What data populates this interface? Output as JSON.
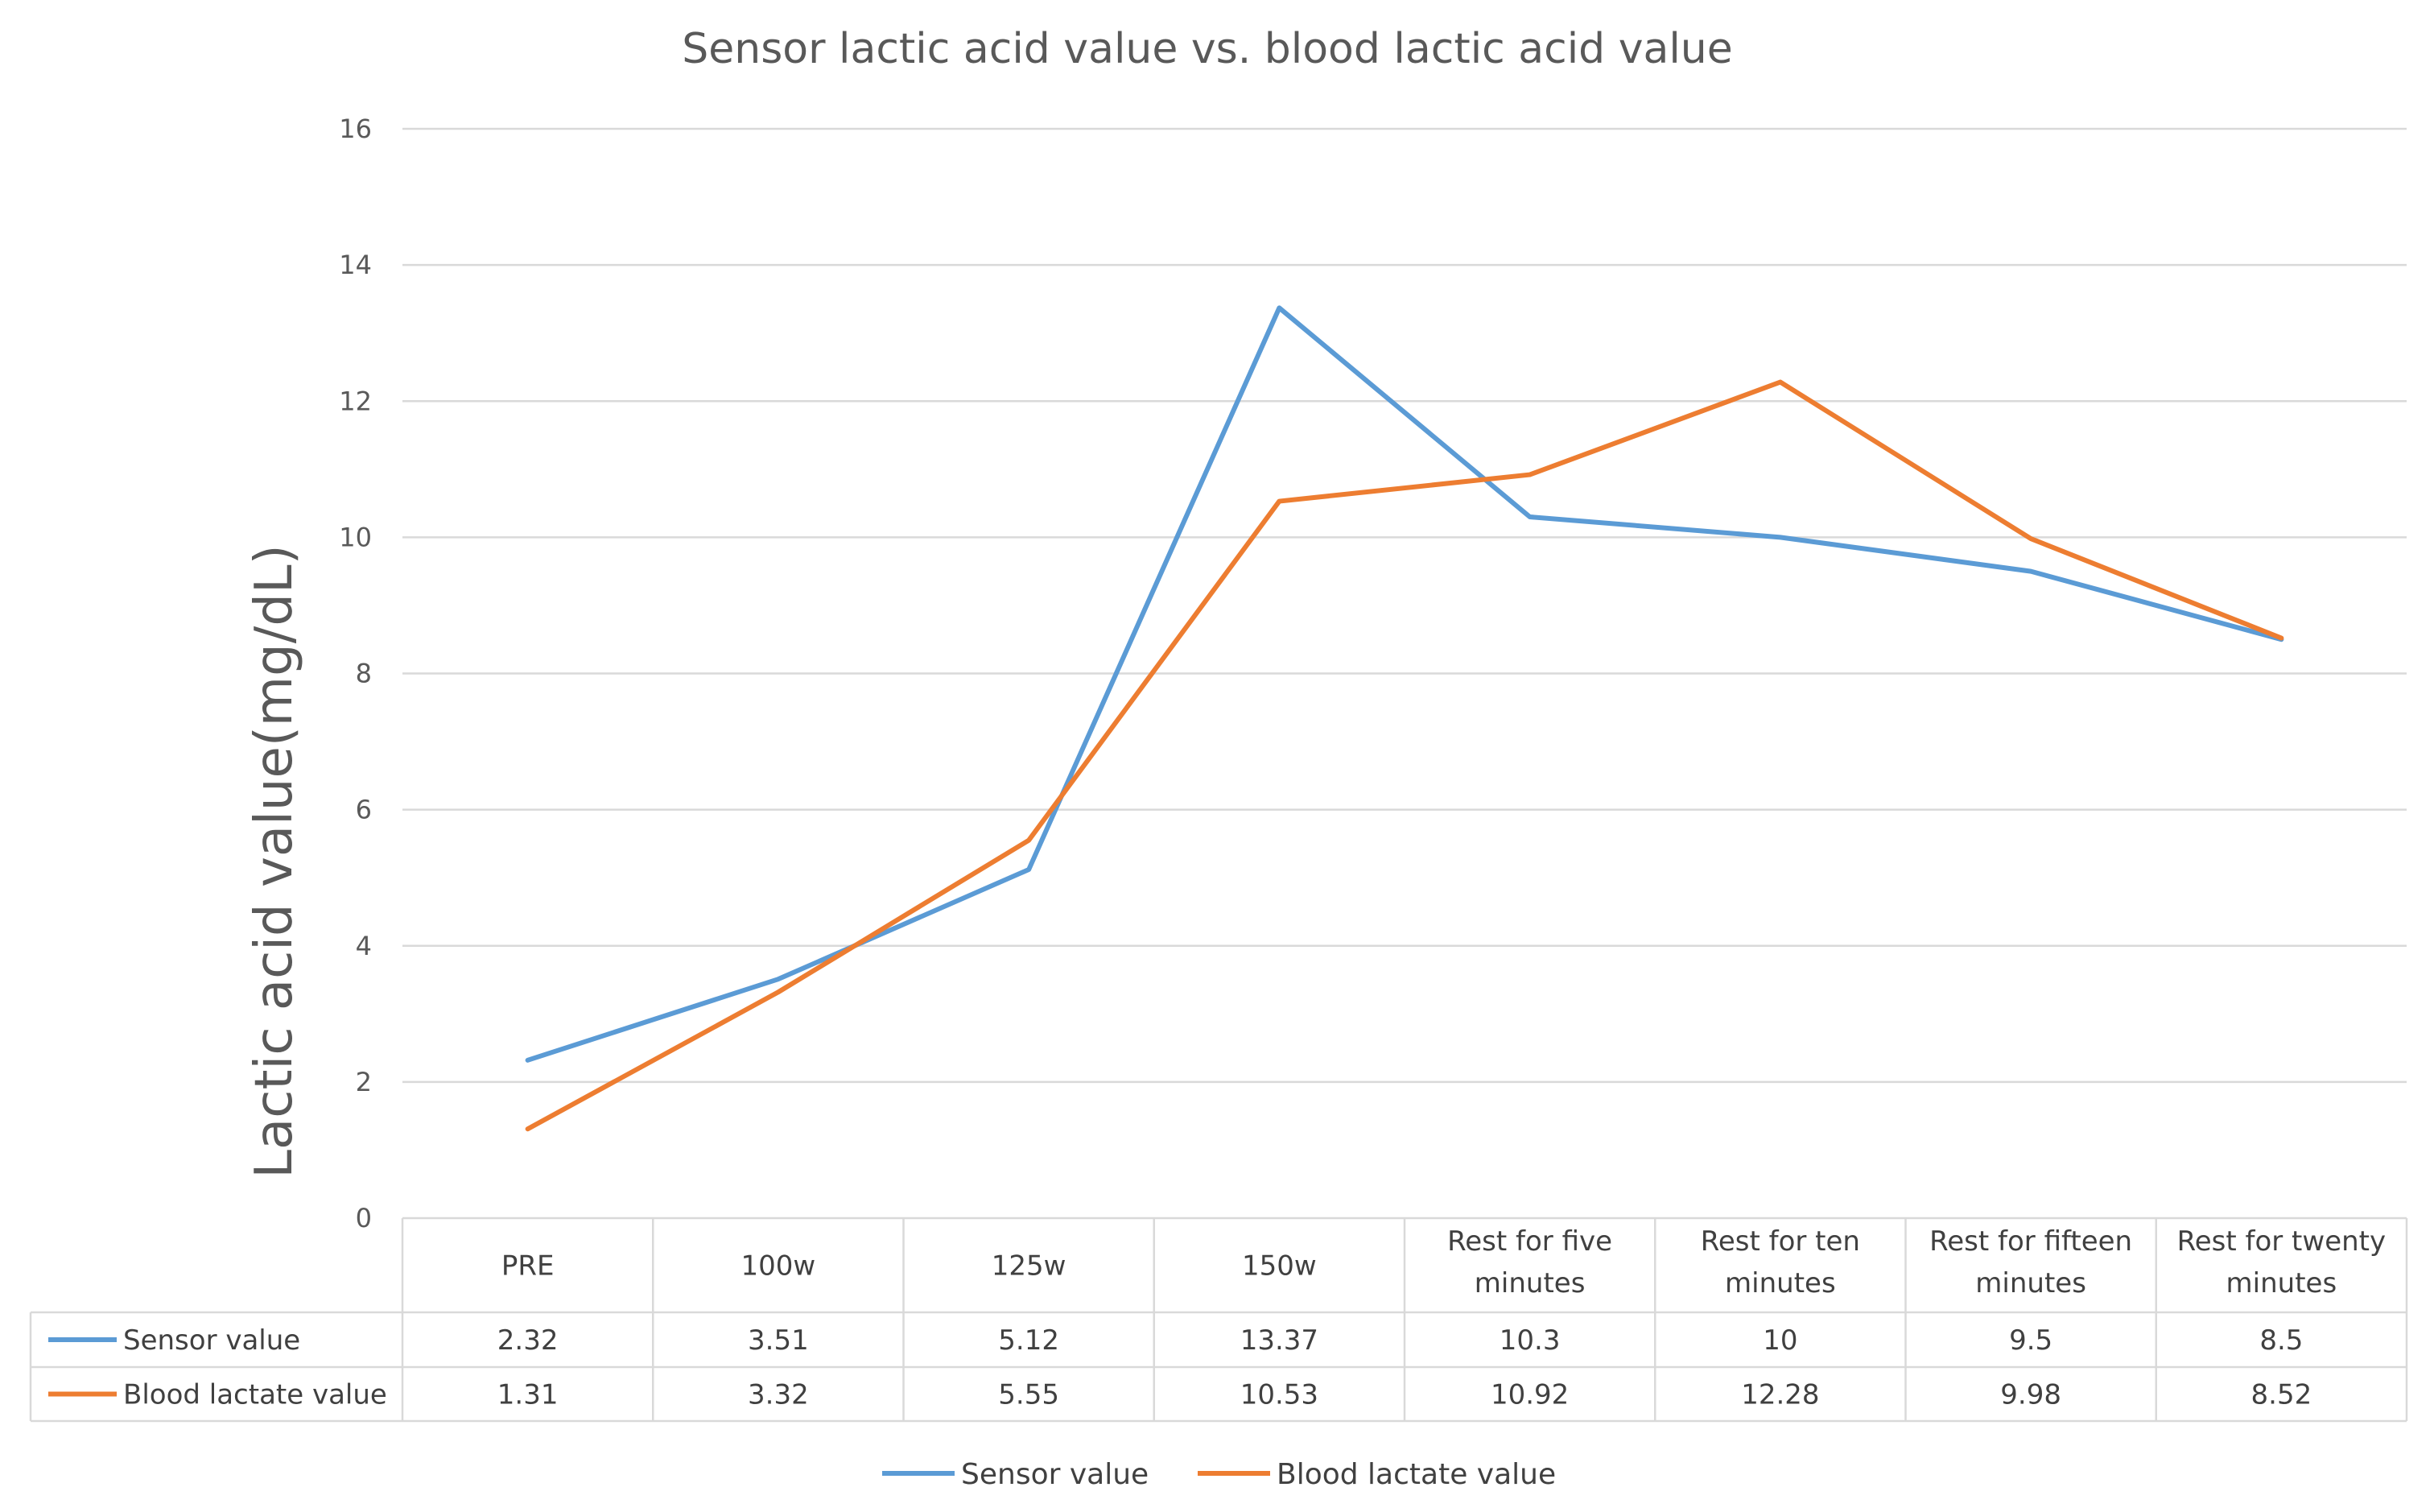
{
  "chart_data": {
    "type": "line",
    "title": "Sensor lactic acid value vs. blood lactic acid value",
    "xlabel": "",
    "ylabel": "Lactic acid value(mg/dL)",
    "ylim": [
      0,
      16
    ],
    "yticks": [
      0,
      2,
      4,
      6,
      8,
      10,
      12,
      14,
      16
    ],
    "grid": true,
    "legend_position": "bottom",
    "categories": [
      [
        "PRE"
      ],
      [
        "100w"
      ],
      [
        "125w"
      ],
      [
        "150w"
      ],
      [
        "Rest for five",
        "minutes"
      ],
      [
        "Rest for ten",
        "minutes"
      ],
      [
        "Rest for fifteen",
        "minutes"
      ],
      [
        "Rest for twenty",
        "minutes"
      ]
    ],
    "series": [
      {
        "name": "Sensor value",
        "color": "#5b9bd5",
        "values": [
          2.32,
          3.51,
          5.12,
          13.37,
          10.3,
          10,
          9.5,
          8.5
        ],
        "labels": [
          "2.32",
          "3.51",
          "5.12",
          "13.37",
          "10.3",
          "10",
          "9.5",
          "8.5"
        ]
      },
      {
        "name": "Blood lactate value",
        "color": "#ed7d31",
        "values": [
          1.31,
          3.32,
          5.55,
          10.53,
          10.92,
          12.28,
          9.98,
          8.52
        ],
        "labels": [
          "1.31",
          "3.32",
          "5.55",
          "10.53",
          "10.92",
          "12.28",
          "9.98",
          "8.52"
        ]
      }
    ]
  }
}
